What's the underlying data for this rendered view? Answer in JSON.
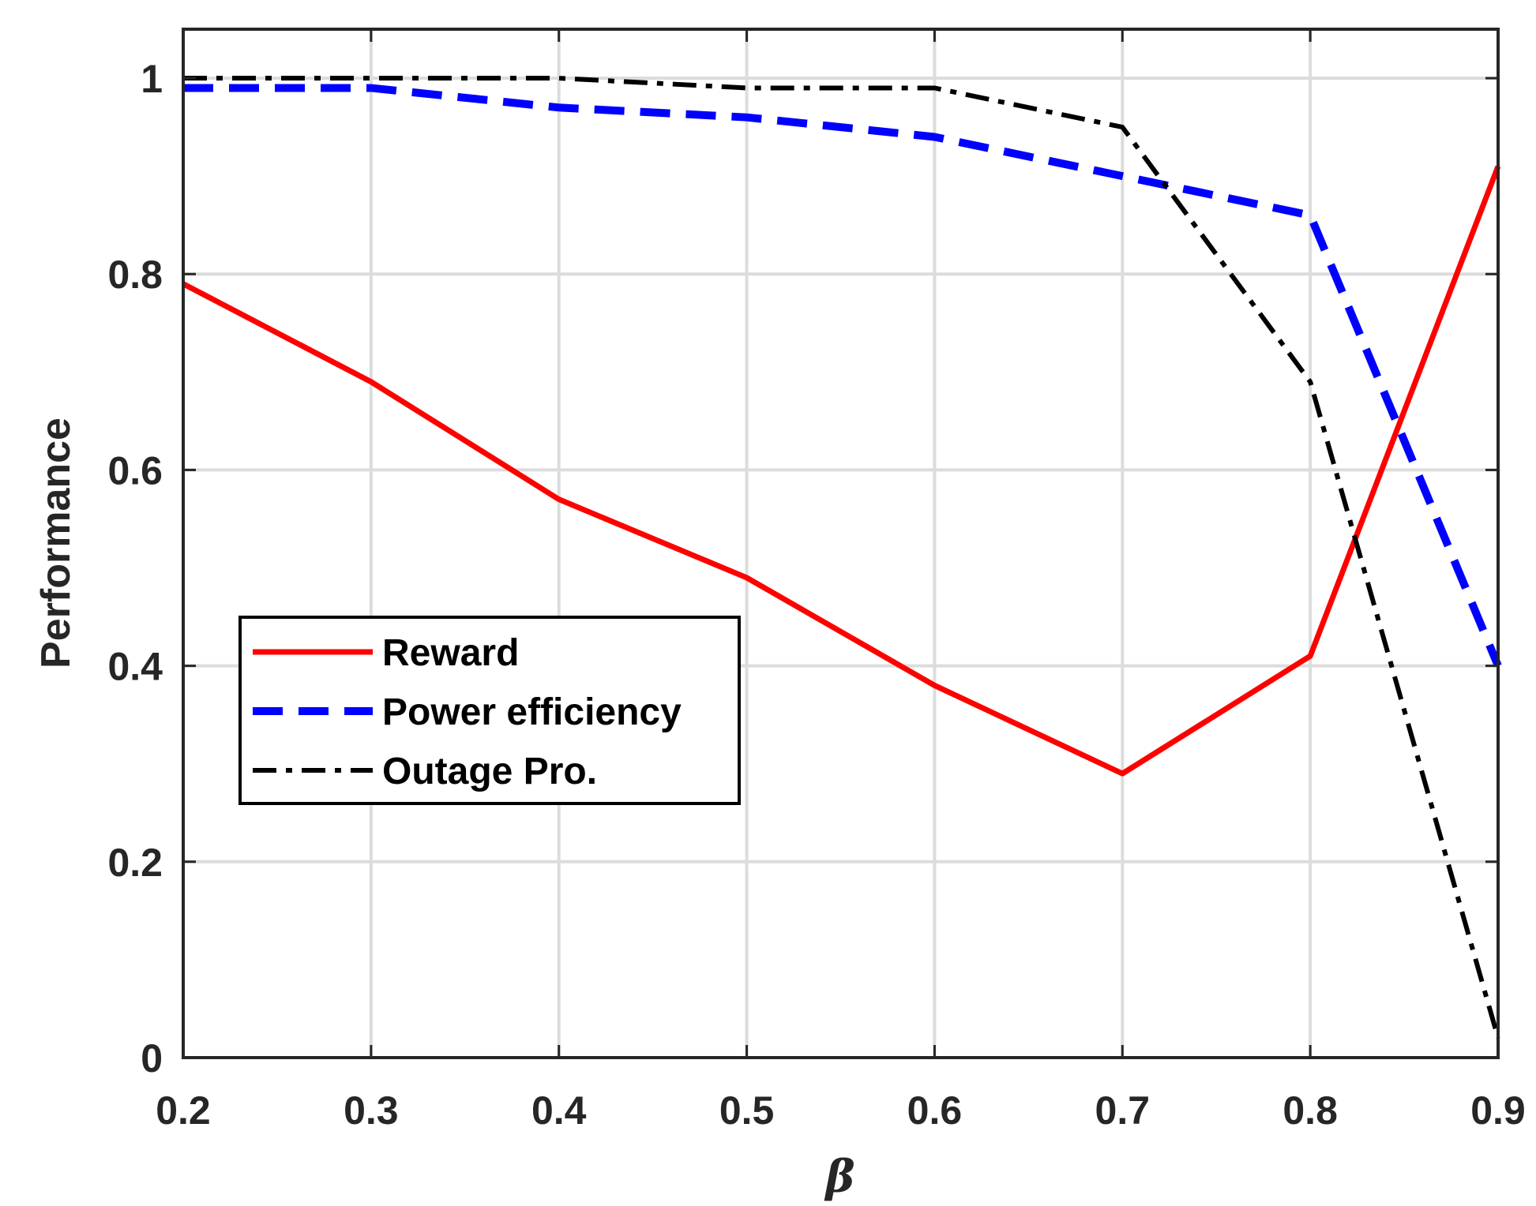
{
  "chart_data": {
    "type": "line",
    "title": "",
    "xlabel": "β",
    "ylabel": "Performance",
    "x": [
      0.2,
      0.3,
      0.4,
      0.5,
      0.6,
      0.7,
      0.8,
      0.9
    ],
    "xlim": [
      0.2,
      0.9
    ],
    "ylim": [
      0,
      1.05
    ],
    "xticks": [
      "0.2",
      "0.3",
      "0.4",
      "0.5",
      "0.6",
      "0.7",
      "0.8",
      "0.9"
    ],
    "yticks": [
      "0",
      "0.2",
      "0.4",
      "0.6",
      "0.8",
      "1"
    ],
    "grid": true,
    "legend_position": "center-left",
    "series": [
      {
        "name": "Reward",
        "color": "#ff0000",
        "style": "solid",
        "values": [
          0.79,
          0.69,
          0.57,
          0.49,
          0.38,
          0.29,
          0.41,
          0.91
        ]
      },
      {
        "name": "Power efficiency",
        "color": "#0000ff",
        "style": "dashed",
        "values": [
          0.99,
          0.99,
          0.97,
          0.96,
          0.94,
          0.9,
          0.86,
          0.4
        ]
      },
      {
        "name": "Outage Pro.",
        "color": "#000000",
        "style": "dashdot",
        "values": [
          1.0,
          1.0,
          1.0,
          0.99,
          0.99,
          0.95,
          0.69,
          0.02
        ]
      }
    ]
  }
}
